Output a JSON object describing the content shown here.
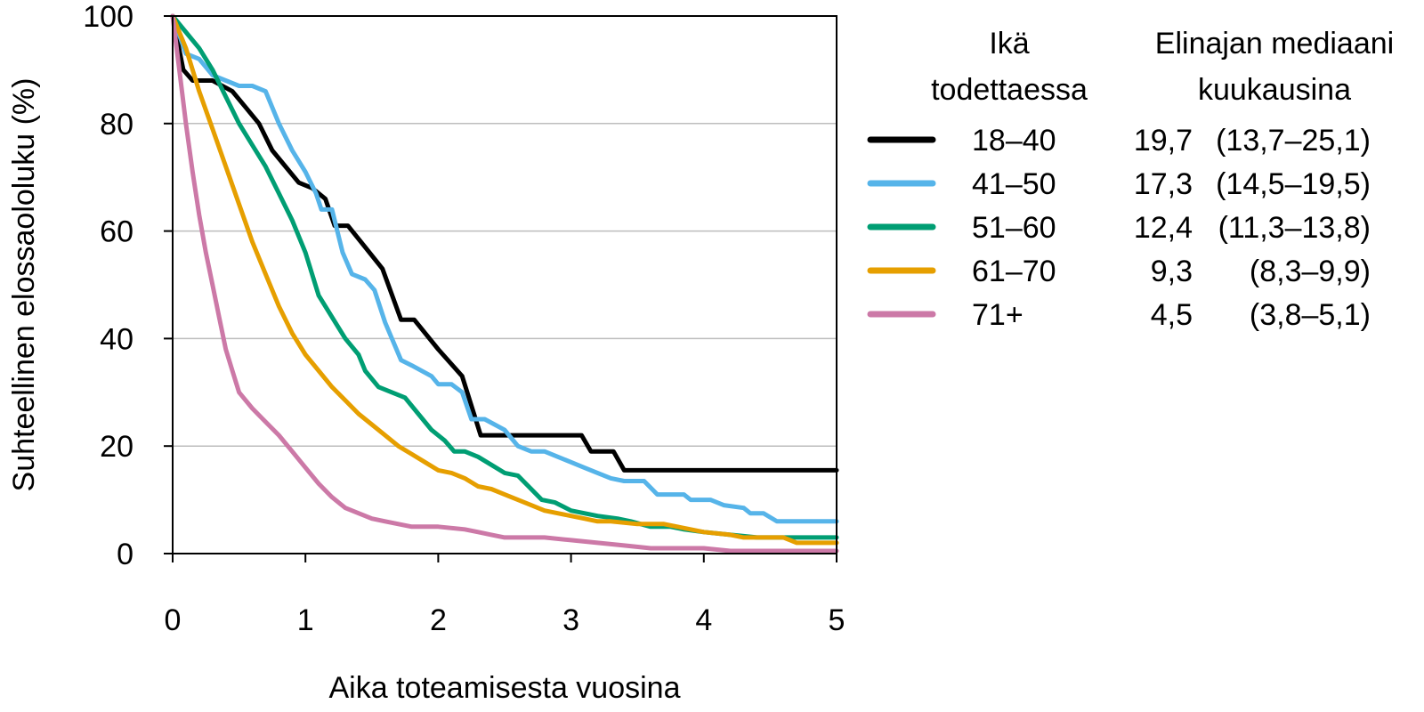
{
  "chart_data": {
    "type": "line",
    "xlabel": "Aika toteamisesta vuosina",
    "ylabel": "Suhteellinen elossaololuku (%)",
    "xlim": [
      0,
      5
    ],
    "ylim": [
      0,
      100
    ],
    "x_ticks": [
      "0",
      "1",
      "2",
      "3",
      "4",
      "5"
    ],
    "y_ticks": [
      "0",
      "20",
      "40",
      "60",
      "80",
      "100"
    ],
    "grid": "horizontal",
    "legend": {
      "placement": "right",
      "header_age": [
        "Ikä",
        "todettaessa"
      ],
      "header_median": [
        "Elinajan mediaani",
        "kuukausina"
      ]
    },
    "series": [
      {
        "name": "18–40",
        "median": "19,7",
        "ci": "(13,7–25,1)",
        "color": "#000000",
        "points": [
          [
            0,
            100
          ],
          [
            0.08,
            90
          ],
          [
            0.15,
            88
          ],
          [
            0.3,
            88
          ],
          [
            0.45,
            86
          ],
          [
            0.55,
            83
          ],
          [
            0.65,
            80
          ],
          [
            0.75,
            75
          ],
          [
            0.85,
            72
          ],
          [
            0.95,
            69
          ],
          [
            1.05,
            68
          ],
          [
            1.15,
            66
          ],
          [
            1.22,
            61
          ],
          [
            1.32,
            61
          ],
          [
            1.45,
            57
          ],
          [
            1.58,
            53
          ],
          [
            1.72,
            43.5
          ],
          [
            1.82,
            43.5
          ],
          [
            2.0,
            38
          ],
          [
            2.18,
            33
          ],
          [
            2.32,
            22
          ],
          [
            2.5,
            22
          ],
          [
            2.7,
            22
          ],
          [
            2.9,
            22
          ],
          [
            3.08,
            22
          ],
          [
            3.15,
            19
          ],
          [
            3.32,
            19
          ],
          [
            3.4,
            15.5
          ],
          [
            3.6,
            15.5
          ],
          [
            4.0,
            15.5
          ],
          [
            4.5,
            15.5
          ],
          [
            5.0,
            15.5
          ]
        ]
      },
      {
        "name": "41–50",
        "median": "17,3",
        "ci": "(14,5–19,5)",
        "color": "#56B4E9",
        "points": [
          [
            0,
            100
          ],
          [
            0.1,
            93
          ],
          [
            0.2,
            92
          ],
          [
            0.3,
            89
          ],
          [
            0.4,
            88
          ],
          [
            0.5,
            87
          ],
          [
            0.6,
            87
          ],
          [
            0.7,
            86
          ],
          [
            0.8,
            80
          ],
          [
            0.9,
            75
          ],
          [
            1.0,
            71
          ],
          [
            1.08,
            67
          ],
          [
            1.12,
            64
          ],
          [
            1.2,
            64
          ],
          [
            1.28,
            56
          ],
          [
            1.35,
            52
          ],
          [
            1.45,
            51
          ],
          [
            1.52,
            49
          ],
          [
            1.6,
            43
          ],
          [
            1.72,
            36
          ],
          [
            1.8,
            35
          ],
          [
            1.95,
            33
          ],
          [
            2.0,
            31.5
          ],
          [
            2.1,
            31.5
          ],
          [
            2.18,
            30
          ],
          [
            2.25,
            25
          ],
          [
            2.35,
            25
          ],
          [
            2.5,
            23
          ],
          [
            2.6,
            20
          ],
          [
            2.7,
            19
          ],
          [
            2.8,
            19
          ],
          [
            3.0,
            17
          ],
          [
            3.1,
            16
          ],
          [
            3.2,
            15
          ],
          [
            3.3,
            14
          ],
          [
            3.4,
            13.5
          ],
          [
            3.55,
            13.5
          ],
          [
            3.65,
            11
          ],
          [
            3.85,
            11
          ],
          [
            3.9,
            10
          ],
          [
            4.05,
            10
          ],
          [
            4.15,
            9
          ],
          [
            4.3,
            8.5
          ],
          [
            4.35,
            7.5
          ],
          [
            4.45,
            7.5
          ],
          [
            4.55,
            6
          ],
          [
            4.75,
            6
          ],
          [
            5.0,
            6
          ]
        ]
      },
      {
        "name": "51–60",
        "median": "12,4",
        "ci": "(11,3–13,8)",
        "color": "#009E73",
        "points": [
          [
            0,
            100
          ],
          [
            0.1,
            97
          ],
          [
            0.2,
            94
          ],
          [
            0.3,
            90
          ],
          [
            0.4,
            85
          ],
          [
            0.5,
            80
          ],
          [
            0.6,
            76
          ],
          [
            0.7,
            72
          ],
          [
            0.8,
            67
          ],
          [
            0.9,
            62
          ],
          [
            1.0,
            56
          ],
          [
            1.1,
            48
          ],
          [
            1.2,
            44
          ],
          [
            1.3,
            40
          ],
          [
            1.4,
            37
          ],
          [
            1.45,
            34
          ],
          [
            1.55,
            31
          ],
          [
            1.65,
            30
          ],
          [
            1.75,
            29
          ],
          [
            1.85,
            26
          ],
          [
            1.95,
            23
          ],
          [
            2.05,
            21
          ],
          [
            2.12,
            19
          ],
          [
            2.2,
            19
          ],
          [
            2.3,
            18
          ],
          [
            2.4,
            16.5
          ],
          [
            2.5,
            15
          ],
          [
            2.6,
            14.5
          ],
          [
            2.68,
            12.5
          ],
          [
            2.78,
            10
          ],
          [
            2.88,
            9.5
          ],
          [
            3.0,
            8
          ],
          [
            3.1,
            7.5
          ],
          [
            3.2,
            7
          ],
          [
            3.35,
            6.5
          ],
          [
            3.45,
            6
          ],
          [
            3.6,
            5
          ],
          [
            3.75,
            5
          ],
          [
            3.85,
            4.5
          ],
          [
            4.0,
            4
          ],
          [
            4.2,
            3.5
          ],
          [
            4.4,
            3
          ],
          [
            4.7,
            3
          ],
          [
            5.0,
            3
          ]
        ]
      },
      {
        "name": "61–70",
        "median": "9,3",
        "ci": "(8,3–9,9)",
        "color": "#E69F00",
        "points": [
          [
            0,
            100
          ],
          [
            0.1,
            94
          ],
          [
            0.2,
            86
          ],
          [
            0.3,
            79
          ],
          [
            0.4,
            72
          ],
          [
            0.5,
            65
          ],
          [
            0.6,
            58
          ],
          [
            0.7,
            52
          ],
          [
            0.8,
            46
          ],
          [
            0.9,
            41
          ],
          [
            1.0,
            37
          ],
          [
            1.1,
            34
          ],
          [
            1.2,
            31
          ],
          [
            1.3,
            28.5
          ],
          [
            1.4,
            26
          ],
          [
            1.5,
            24
          ],
          [
            1.6,
            22
          ],
          [
            1.7,
            20
          ],
          [
            1.8,
            18.5
          ],
          [
            1.9,
            17
          ],
          [
            2.0,
            15.5
          ],
          [
            2.1,
            15
          ],
          [
            2.2,
            14
          ],
          [
            2.3,
            12.5
          ],
          [
            2.4,
            12
          ],
          [
            2.5,
            11
          ],
          [
            2.6,
            10
          ],
          [
            2.7,
            9
          ],
          [
            2.8,
            8
          ],
          [
            2.9,
            7.5
          ],
          [
            3.0,
            7
          ],
          [
            3.1,
            6.5
          ],
          [
            3.2,
            6
          ],
          [
            3.3,
            6
          ],
          [
            3.5,
            5.5
          ],
          [
            3.7,
            5.5
          ],
          [
            3.8,
            5
          ],
          [
            4.0,
            4
          ],
          [
            4.2,
            3.5
          ],
          [
            4.3,
            3
          ],
          [
            4.6,
            3
          ],
          [
            4.7,
            2
          ],
          [
            5.0,
            2
          ]
        ]
      },
      {
        "name": "71+",
        "median": "4,5",
        "ci": "(3,8–5,1)",
        "color": "#CC79A7",
        "points": [
          [
            0,
            100
          ],
          [
            0.05,
            90
          ],
          [
            0.1,
            80
          ],
          [
            0.15,
            71
          ],
          [
            0.2,
            63
          ],
          [
            0.25,
            56
          ],
          [
            0.3,
            50
          ],
          [
            0.35,
            44
          ],
          [
            0.4,
            38
          ],
          [
            0.45,
            34
          ],
          [
            0.5,
            30
          ],
          [
            0.6,
            27
          ],
          [
            0.7,
            24.5
          ],
          [
            0.8,
            22
          ],
          [
            0.9,
            19
          ],
          [
            1.0,
            16
          ],
          [
            1.1,
            13
          ],
          [
            1.2,
            10.5
          ],
          [
            1.3,
            8.5
          ],
          [
            1.4,
            7.5
          ],
          [
            1.5,
            6.5
          ],
          [
            1.6,
            6
          ],
          [
            1.7,
            5.5
          ],
          [
            1.8,
            5
          ],
          [
            2.0,
            5
          ],
          [
            2.2,
            4.5
          ],
          [
            2.3,
            4
          ],
          [
            2.4,
            3.5
          ],
          [
            2.5,
            3
          ],
          [
            2.6,
            3
          ],
          [
            2.8,
            3
          ],
          [
            3.0,
            2.5
          ],
          [
            3.2,
            2
          ],
          [
            3.4,
            1.5
          ],
          [
            3.6,
            1
          ],
          [
            3.8,
            1
          ],
          [
            4.0,
            1
          ],
          [
            4.2,
            0.5
          ],
          [
            4.6,
            0.5
          ],
          [
            5.0,
            0.5
          ]
        ]
      }
    ]
  }
}
